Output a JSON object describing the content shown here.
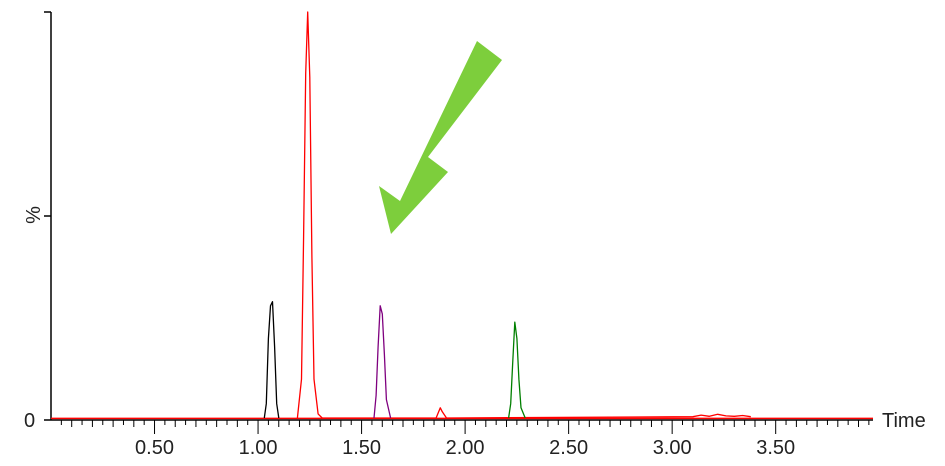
{
  "chart_data": {
    "type": "line",
    "title": "",
    "xlabel": "Time",
    "ylabel": "%",
    "y_tick_labels": [
      "0",
      "%"
    ],
    "xlim": [
      0.0,
      3.97
    ],
    "ylim": [
      0,
      100
    ],
    "x_ticks": [
      0.5,
      1.0,
      1.5,
      2.0,
      2.5,
      3.0,
      3.5
    ],
    "x_tick_labels": [
      "0.50",
      "1.00",
      "1.50",
      "2.00",
      "2.50",
      "3.00",
      "3.50"
    ],
    "grid": false,
    "series": [
      {
        "color": "#000000",
        "points": [
          [
            1.03,
            0.5
          ],
          [
            1.04,
            4
          ],
          [
            1.05,
            20
          ],
          [
            1.06,
            28
          ],
          [
            1.07,
            29
          ],
          [
            1.08,
            18
          ],
          [
            1.09,
            4
          ],
          [
            1.1,
            0.5
          ]
        ]
      },
      {
        "color": "#ff0000",
        "points": [
          [
            1.19,
            0.5
          ],
          [
            1.21,
            10
          ],
          [
            1.22,
            45
          ],
          [
            1.23,
            85
          ],
          [
            1.24,
            100
          ],
          [
            1.25,
            84
          ],
          [
            1.26,
            40
          ],
          [
            1.27,
            10
          ],
          [
            1.29,
            1.5
          ],
          [
            1.31,
            0.5
          ],
          [
            1.86,
            0.5
          ],
          [
            1.88,
            3
          ],
          [
            1.89,
            2
          ],
          [
            1.91,
            0.5
          ],
          [
            3.1,
            0.8
          ],
          [
            3.14,
            1.2
          ],
          [
            3.18,
            0.9
          ],
          [
            3.22,
            1.4
          ],
          [
            3.26,
            1.0
          ],
          [
            3.3,
            0.9
          ],
          [
            3.34,
            1.1
          ],
          [
            3.38,
            0.8
          ]
        ]
      },
      {
        "color": "#7f007f",
        "points": [
          [
            1.56,
            0.5
          ],
          [
            1.57,
            6
          ],
          [
            1.58,
            18
          ],
          [
            1.59,
            28
          ],
          [
            1.6,
            26
          ],
          [
            1.61,
            16
          ],
          [
            1.62,
            5
          ],
          [
            1.64,
            0.5
          ]
        ]
      },
      {
        "color": "#007f00",
        "points": [
          [
            2.21,
            0.5
          ],
          [
            2.22,
            4
          ],
          [
            2.23,
            14
          ],
          [
            2.24,
            24
          ],
          [
            2.25,
            20
          ],
          [
            2.26,
            10
          ],
          [
            2.27,
            3
          ],
          [
            2.29,
            0.5
          ]
        ]
      }
    ]
  },
  "overlay": {
    "arrow_color": "#7dce3c",
    "arrow_icon": "down-left-arrow"
  }
}
